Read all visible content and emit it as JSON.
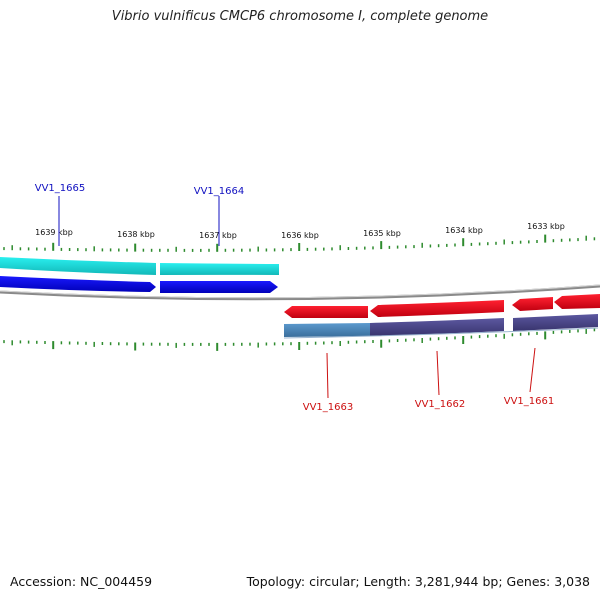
{
  "title": "Vibrio vulnificus CMCP6 chromosome I, complete genome",
  "footer": {
    "accession": "Accession: NC_004459",
    "stats": "Topology: circular; Length: 3,281,944 bp; Genes: 3,038"
  },
  "scale_labels": [
    "1639 kbp",
    "1638 kbp",
    "1637 kbp",
    "1636 kbp",
    "1635 kbp",
    "1634 kbp",
    "1633 kbp"
  ],
  "genes": [
    {
      "id": "VV1_1665",
      "strand": "+"
    },
    {
      "id": "VV1_1664",
      "strand": "+"
    },
    {
      "id": "VV1_1663",
      "strand": "-"
    },
    {
      "id": "VV1_1662",
      "strand": "-"
    },
    {
      "id": "VV1_1661",
      "strand": "-"
    }
  ],
  "colors": {
    "forward_gene": "#0a0add",
    "forward_feature": "#1ad2d2",
    "reverse_gene": "#e0081a",
    "reverse_feature_a": "#4a86b8",
    "reverse_feature_b": "#484488",
    "backbone": "#8a8a8a",
    "ticks": "#2e8b2e",
    "forward_label": "#1010c0",
    "reverse_label": "#cc1010"
  }
}
